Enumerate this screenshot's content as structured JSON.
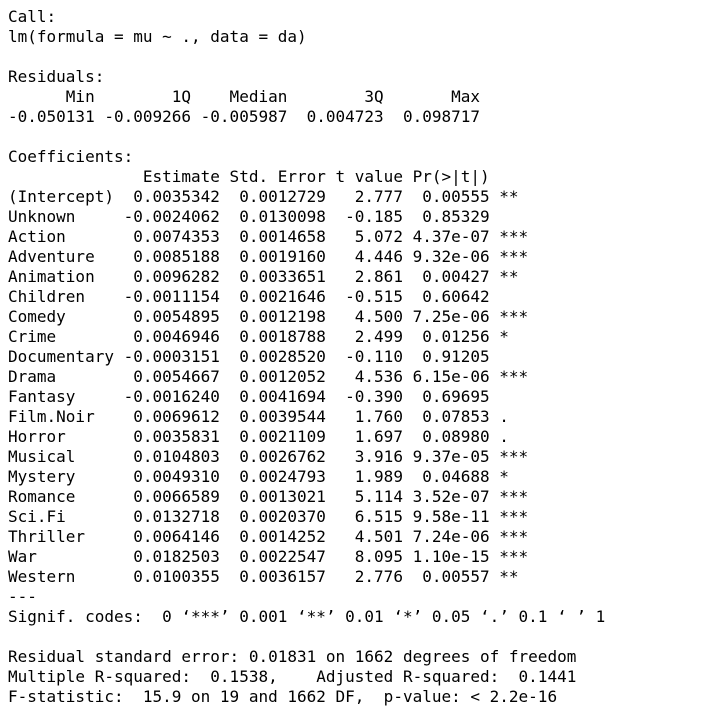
{
  "call": {
    "header": "Call:",
    "formula": "lm(formula = mu ~ ., data = da)"
  },
  "residuals": {
    "header": "Residuals:",
    "labels": "      Min        1Q    Median        3Q       Max ",
    "values": "-0.050131 -0.009266 -0.005987  0.004723  0.098717 "
  },
  "coefficients": {
    "header": "Coefficients:",
    "colheader": "              Estimate Std. Error t value Pr(>|t|)    ",
    "rows": [
      "(Intercept)  0.0035342  0.0012729   2.777  0.00555 ** ",
      "Unknown     -0.0024062  0.0130098  -0.185  0.85329    ",
      "Action       0.0074353  0.0014658   5.072 4.37e-07 ***",
      "Adventure    0.0085188  0.0019160   4.446 9.32e-06 ***",
      "Animation    0.0096282  0.0033651   2.861  0.00427 ** ",
      "Children    -0.0011154  0.0021646  -0.515  0.60642    ",
      "Comedy       0.0054895  0.0012198   4.500 7.25e-06 ***",
      "Crime        0.0046946  0.0018788   2.499  0.01256 *  ",
      "Documentary -0.0003151  0.0028520  -0.110  0.91205    ",
      "Drama        0.0054667  0.0012052   4.536 6.15e-06 ***",
      "Fantasy     -0.0016240  0.0041694  -0.390  0.69695    ",
      "Film.Noir    0.0069612  0.0039544   1.760  0.07853 .  ",
      "Horror       0.0035831  0.0021109   1.697  0.08980 .  ",
      "Musical      0.0104803  0.0026762   3.916 9.37e-05 ***",
      "Mystery      0.0049310  0.0024793   1.989  0.04688 *  ",
      "Romance      0.0066589  0.0013021   5.114 3.52e-07 ***",
      "Sci.Fi       0.0132718  0.0020370   6.515 9.58e-11 ***",
      "Thriller     0.0064146  0.0014252   4.501 7.24e-06 ***",
      "War          0.0182503  0.0022547   8.095 1.10e-15 ***",
      "Western      0.0100355  0.0036157   2.776  0.00557 ** "
    ],
    "separator": "---",
    "signif": "Signif. codes:  0 ‘***’ 0.001 ‘**’ 0.01 ‘*’ 0.05 ‘.’ 0.1 ‘ ’ 1"
  },
  "summary": {
    "rse": "Residual standard error: 0.01831 on 1662 degrees of freedom",
    "rsq": "Multiple R-squared:  0.1538,\tAdjusted R-squared:  0.1441 ",
    "fstat": "F-statistic:  15.9 on 19 and 1662 DF,  p-value: < 2.2e-16"
  }
}
